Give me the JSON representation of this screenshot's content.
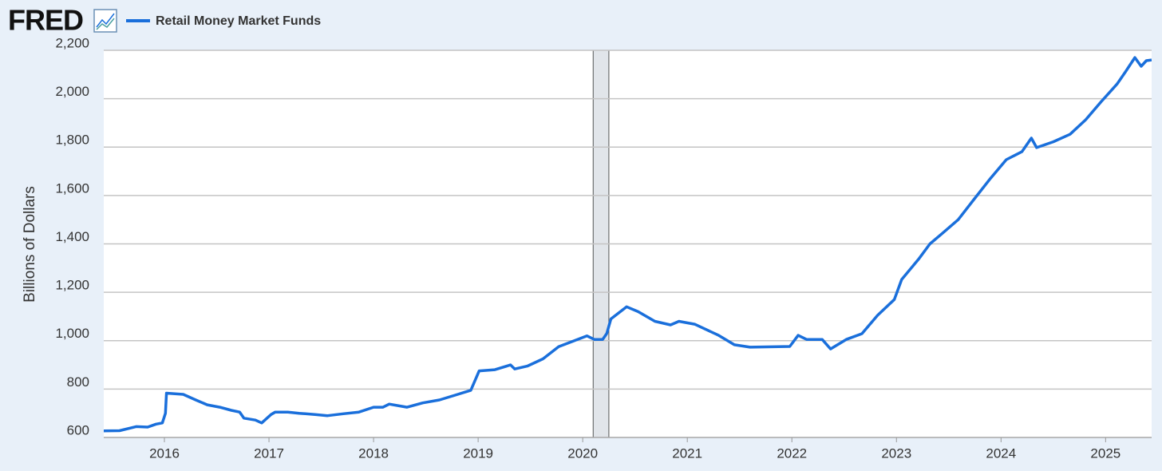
{
  "chart_data": {
    "type": "line",
    "logo": "FRED",
    "ylabel": "Billions of Dollars",
    "xlim": [
      2015.42,
      2025.44
    ],
    "xticks": [
      2016,
      2017,
      2018,
      2019,
      2020,
      2021,
      2022,
      2023,
      2024,
      2025
    ],
    "ylim": [
      600,
      2200
    ],
    "yticks": [
      600,
      800,
      {
        "value": 1000,
        "label": "1,000"
      },
      {
        "value": 1200,
        "label": "1,200"
      },
      {
        "value": 1400,
        "label": "1,400"
      },
      {
        "value": 1600,
        "label": "1,600"
      },
      {
        "value": 1800,
        "label": "1,800"
      },
      {
        "value": 2000,
        "label": "2,000"
      },
      {
        "value": 2200,
        "label": "2,200"
      }
    ],
    "grid": true,
    "recession": {
      "start": 2020.1,
      "end": 2020.25,
      "color": "#e1e5ea"
    },
    "x": [
      2015.42,
      2015.57,
      2015.73,
      2015.84,
      2015.92,
      2015.98,
      2016.01,
      2016.02,
      2016.18,
      2016.3,
      2016.41,
      2016.53,
      2016.64,
      2016.72,
      2016.76,
      2016.87,
      2016.93,
      2017.02,
      2017.06,
      2017.18,
      2017.29,
      2017.44,
      2017.56,
      2017.71,
      2017.86,
      2018.0,
      2018.09,
      2018.15,
      2018.32,
      2018.47,
      2018.63,
      2018.78,
      2018.93,
      2019.01,
      2019.16,
      2019.31,
      2019.35,
      2019.47,
      2019.62,
      2019.77,
      2019.92,
      2020.04,
      2020.11,
      2020.19,
      2020.23,
      2020.27,
      2020.42,
      2020.53,
      2020.69,
      2020.84,
      2020.92,
      2021.07,
      2021.3,
      2021.45,
      2021.6,
      2021.98,
      2022.06,
      2022.14,
      2022.29,
      2022.37,
      2022.52,
      2022.67,
      2022.82,
      2022.98,
      2023.05,
      2023.21,
      2023.32,
      2023.44,
      2023.59,
      2023.74,
      2023.89,
      2024.05,
      2024.2,
      2024.29,
      2024.34,
      2024.5,
      2024.66,
      2024.81,
      2024.96,
      2025.11,
      2025.19,
      2025.28,
      2025.34,
      2025.39,
      2025.44
    ],
    "series": [
      {
        "name": "Retail Money Market Funds",
        "color": "#1a6fdb",
        "values": [
          627,
          628,
          645,
          643,
          655,
          660,
          700,
          783,
          778,
          755,
          735,
          725,
          712,
          705,
          680,
          672,
          660,
          695,
          705,
          705,
          700,
          695,
          690,
          698,
          705,
          725,
          725,
          738,
          725,
          743,
          755,
          775,
          795,
          875,
          880,
          900,
          883,
          895,
          925,
          975,
          1000,
          1020,
          1005,
          1005,
          1030,
          1090,
          1140,
          1120,
          1080,
          1065,
          1080,
          1068,
          1022,
          983,
          973,
          976,
          1022,
          1005,
          1005,
          966,
          1005,
          1029,
          1105,
          1170,
          1253,
          1336,
          1400,
          1444,
          1500,
          1583,
          1666,
          1748,
          1781,
          1837,
          1798,
          1822,
          1853,
          1913,
          1989,
          2061,
          2111,
          2170,
          2134,
          2157,
          2160
        ]
      }
    ]
  }
}
